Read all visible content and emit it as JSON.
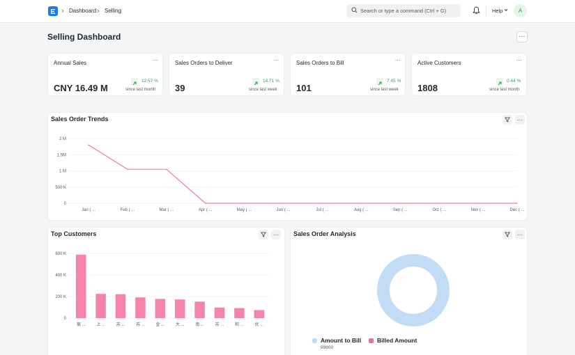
{
  "nav": {
    "breadcrumbs": [
      "Dashboard",
      "Selling"
    ],
    "search_placeholder": "Search or type a command (Ctrl + G)",
    "help_label": "Help",
    "avatar_initial": "A"
  },
  "page": {
    "title": "Selling Dashboard",
    "menu_label": "···"
  },
  "kpis": [
    {
      "title": "Annual Sales",
      "value": "CNY 16.49 M",
      "trend": "12.57 %",
      "trend_note": "since last month"
    },
    {
      "title": "Sales Orders to Deliver",
      "value": "39",
      "trend": "14.71 %",
      "trend_note": "since last week"
    },
    {
      "title": "Sales Orders to Bill",
      "value": "101",
      "trend": "7.45 %",
      "trend_note": "since last week"
    },
    {
      "title": "Active Customers",
      "value": "1808",
      "trend": "0.44 %",
      "trend_note": "since last month"
    }
  ],
  "colors": {
    "accent": "#1e7ae8",
    "line": "#f27aa2",
    "bar": "#f584ac",
    "donut": "#c2dcf5",
    "billed": "#ec6f9a",
    "positive": "#2f9d58"
  },
  "panels": {
    "trends_title": "Sales Order Trends",
    "customers_title": "Top Customers",
    "analysis_title": "Sales Order Analysis"
  },
  "chart_data": [
    {
      "type": "line",
      "title": "Sales Order Trends",
      "categories": [
        "Jan ( ...",
        "Feb ( ...",
        "Mar ( ...",
        "Apr ( ...",
        "May ( ...",
        "Jun ( ...",
        "Jul ( ...",
        "Aug ( ...",
        "Sep ( ...",
        "Oct ( ...",
        "Nov ( ...",
        "Dec ( ..."
      ],
      "values": [
        1800000,
        1050000,
        1050000,
        0,
        0,
        0,
        0,
        0,
        0,
        0,
        0,
        0
      ],
      "yticks": [
        0,
        500000,
        1000000,
        1500000,
        2000000
      ],
      "ytick_labels": [
        "0",
        "500 K",
        "1 M",
        "1.5M",
        "2 M"
      ],
      "ylim": [
        0,
        2000000
      ],
      "grid": true
    },
    {
      "type": "bar",
      "title": "Top Customers",
      "categories": [
        "宿 ...",
        "上 ...",
        "苏 ...",
        "苏 ...",
        "金 ...",
        "大 ...",
        "南 ...",
        "苏 ...",
        "和 ...",
        "优 ..."
      ],
      "values": [
        588000,
        225000,
        222000,
        192000,
        178000,
        173000,
        153000,
        98000,
        93000,
        74000
      ],
      "yticks": [
        0,
        200000,
        400000,
        600000
      ],
      "ytick_labels": [
        "0",
        "200 K",
        "400 K",
        "600 K"
      ],
      "ylim": [
        0,
        600000
      ],
      "grid": true
    },
    {
      "type": "pie",
      "title": "Sales Order Analysis",
      "donut": true,
      "slices": [
        {
          "name": "Amount to Bill",
          "value": 99800,
          "value_label": "99800",
          "color": "#c2dcf5"
        },
        {
          "name": "Billed Amount",
          "value": 0,
          "value_label": "",
          "color": "#ec6f9a"
        }
      ],
      "legend": "bottom"
    }
  ]
}
